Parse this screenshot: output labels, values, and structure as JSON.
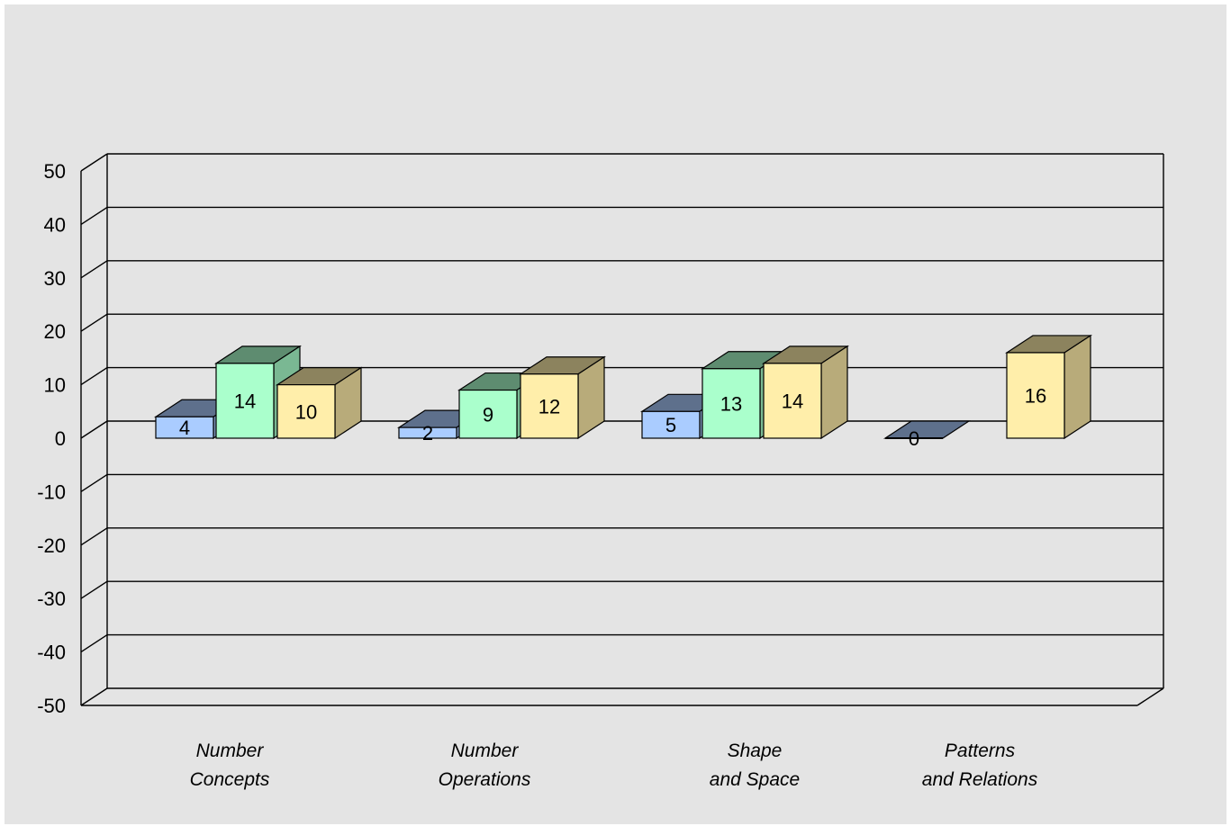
{
  "chart_data": {
    "type": "bar",
    "title": "",
    "xlabel": "",
    "ylabel": "",
    "ylim": [
      -50,
      50
    ],
    "yticks": [
      50,
      40,
      30,
      20,
      10,
      0,
      -10,
      -20,
      -30,
      -40,
      -50
    ],
    "grid": true,
    "three_d": true,
    "categories": [
      [
        "Number",
        "Concepts"
      ],
      [
        "Number",
        "Operations"
      ],
      [
        "Shape",
        "and Space"
      ],
      [
        "Patterns",
        "and Relations"
      ]
    ],
    "series": [
      {
        "values": [
          4,
          2,
          5,
          0
        ],
        "color": "#aaccff"
      },
      {
        "values": [
          14,
          9,
          13,
          null
        ],
        "color": "#aaffcc"
      },
      {
        "values": [
          10,
          12,
          14,
          16
        ],
        "color": "#ffeeaa"
      }
    ],
    "background": "#e4e4e4"
  }
}
